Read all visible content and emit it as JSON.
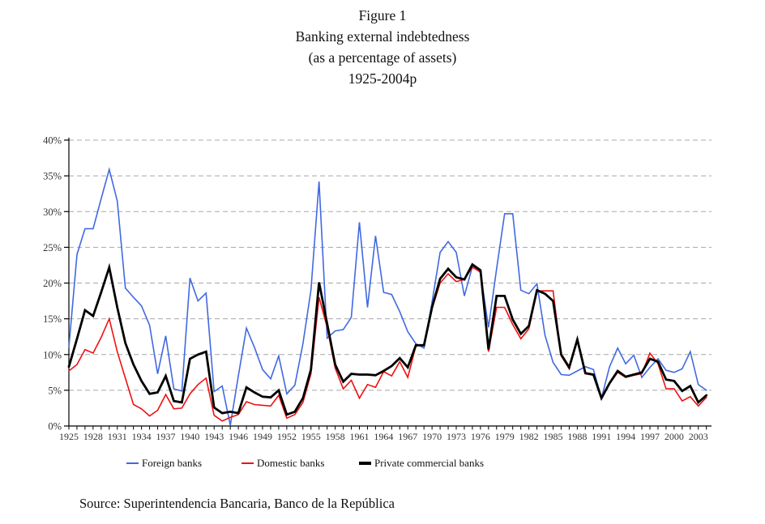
{
  "title": {
    "lines": [
      "Figure 1",
      "Banking external indebtedness",
      "(as a percentage of assets)",
      "1925-2004p"
    ]
  },
  "legend": [
    {
      "label": "Foreign banks",
      "color": "#4169e1",
      "thick": false
    },
    {
      "label": "Domestic banks",
      "color": "#ee1111",
      "thick": false
    },
    {
      "label": "Private commercial banks",
      "color": "#000000",
      "thick": true
    }
  ],
  "source": "Source: Superintendencia Bancaria, Banco de la República",
  "colors": {
    "foreign": "#4169e1",
    "domestic": "#ee1111",
    "private": "#000000",
    "gridline": "#a8a8a8",
    "axis": "#000000",
    "tick_text": "#333333"
  },
  "chart_data": {
    "type": "line",
    "title": "Banking external indebtedness (as a percentage of assets) 1925-2004p",
    "xlabel": "",
    "ylabel": "",
    "ylim": [
      0,
      40
    ],
    "y_tick_step": 5,
    "y_tick_labels": [
      "0%",
      "5%",
      "10%",
      "15%",
      "20%",
      "25%",
      "30%",
      "35%",
      "40%"
    ],
    "x_tick_labels": [
      "1925",
      "1928",
      "1931",
      "1934",
      "1937",
      "1940",
      "1943",
      "1946",
      "1949",
      "1952",
      "1955",
      "1958",
      "1961",
      "1964",
      "1967",
      "1970",
      "1973",
      "1976",
      "1979",
      "1982",
      "1985",
      "1988",
      "1991",
      "1994",
      "1997",
      "2000",
      "2003"
    ],
    "grid": "horizontal-dashed",
    "legend_position": "bottom",
    "x_start": 1925,
    "x_end": 2004,
    "x": [
      1925,
      1926,
      1927,
      1928,
      1929,
      1930,
      1931,
      1932,
      1933,
      1934,
      1935,
      1936,
      1937,
      1938,
      1939,
      1940,
      1941,
      1942,
      1943,
      1944,
      1945,
      1946,
      1947,
      1948,
      1949,
      1950,
      1951,
      1952,
      1953,
      1954,
      1955,
      1956,
      1957,
      1958,
      1959,
      1960,
      1961,
      1962,
      1963,
      1964,
      1965,
      1966,
      1967,
      1968,
      1969,
      1970,
      1971,
      1972,
      1973,
      1974,
      1975,
      1976,
      1977,
      1978,
      1979,
      1980,
      1981,
      1982,
      1983,
      1984,
      1985,
      1986,
      1987,
      1988,
      1989,
      1990,
      1991,
      1992,
      1993,
      1994,
      1995,
      1996,
      1997,
      1998,
      1999,
      2000,
      2001,
      2002,
      2003,
      2004
    ],
    "series": [
      {
        "name": "Foreign banks",
        "color": "#4169e1",
        "stroke_width": 1.6,
        "values": [
          11.0,
          24.0,
          27.6,
          27.6,
          31.8,
          35.9,
          31.5,
          19.3,
          18.0,
          16.8,
          14.1,
          7.3,
          12.6,
          5.2,
          4.9,
          20.7,
          17.5,
          18.6,
          4.8,
          5.6,
          0.1,
          7.0,
          13.7,
          11.0,
          7.9,
          6.6,
          9.8,
          4.5,
          5.7,
          11.5,
          19.0,
          34.2,
          12.3,
          13.3,
          13.5,
          15.2,
          28.5,
          16.6,
          26.6,
          18.7,
          18.4,
          16.0,
          13.2,
          11.5,
          10.9,
          17.3,
          24.3,
          25.8,
          24.3,
          18.2,
          22.3,
          21.5,
          13.8,
          22.0,
          29.7,
          29.7,
          19.0,
          18.5,
          19.9,
          12.7,
          8.9,
          7.2,
          7.1,
          7.7,
          8.3,
          7.9,
          3.9,
          8.3,
          10.9,
          8.7,
          9.9,
          6.8,
          8.2,
          9.4,
          7.8,
          7.5,
          8.0,
          10.4,
          5.8,
          5.0
        ]
      },
      {
        "name": "Domestic banks",
        "color": "#ee1111",
        "stroke_width": 1.6,
        "values": [
          7.7,
          8.6,
          10.7,
          10.2,
          12.4,
          15.0,
          10.4,
          6.7,
          3.0,
          2.4,
          1.4,
          2.2,
          4.4,
          2.4,
          2.5,
          4.5,
          5.8,
          6.7,
          1.5,
          0.7,
          1.2,
          1.6,
          3.4,
          3.0,
          2.9,
          2.8,
          4.3,
          1.1,
          1.6,
          3.3,
          7.3,
          18.0,
          13.8,
          8.1,
          5.2,
          6.4,
          3.9,
          5.8,
          5.4,
          7.6,
          7.0,
          9.0,
          6.8,
          11.2,
          11.4,
          16.4,
          20.0,
          21.3,
          20.2,
          20.5,
          22.2,
          21.6,
          10.4,
          16.6,
          16.6,
          14.2,
          12.2,
          13.6,
          18.9,
          18.9,
          18.9,
          9.8,
          8.0,
          12.0,
          7.3,
          7.1,
          3.9,
          5.9,
          7.5,
          6.8,
          7.1,
          7.3,
          10.2,
          8.7,
          5.2,
          5.2,
          3.5,
          4.1,
          2.8,
          4.0
        ]
      },
      {
        "name": "Private commercial banks",
        "color": "#000000",
        "stroke_width": 2.8,
        "values": [
          8.3,
          12.2,
          16.2,
          15.4,
          18.7,
          22.2,
          16.6,
          11.6,
          8.6,
          6.3,
          4.5,
          4.7,
          7.0,
          3.5,
          3.3,
          9.4,
          10.0,
          10.4,
          2.6,
          1.8,
          2.0,
          1.8,
          5.4,
          4.7,
          4.1,
          4.0,
          5.0,
          1.6,
          2.0,
          3.9,
          7.9,
          20.1,
          14.3,
          8.6,
          6.2,
          7.3,
          7.2,
          7.2,
          7.1,
          7.7,
          8.4,
          9.5,
          8.2,
          11.3,
          11.3,
          16.6,
          20.6,
          22.0,
          20.8,
          20.5,
          22.6,
          21.8,
          10.7,
          18.2,
          18.2,
          14.9,
          12.9,
          14.0,
          19.0,
          18.5,
          17.5,
          10.0,
          8.2,
          12.1,
          7.4,
          7.2,
          3.9,
          6.0,
          7.7,
          6.9,
          7.2,
          7.5,
          9.4,
          9.0,
          6.5,
          6.3,
          4.9,
          5.6,
          3.3,
          4.3
        ]
      }
    ]
  }
}
